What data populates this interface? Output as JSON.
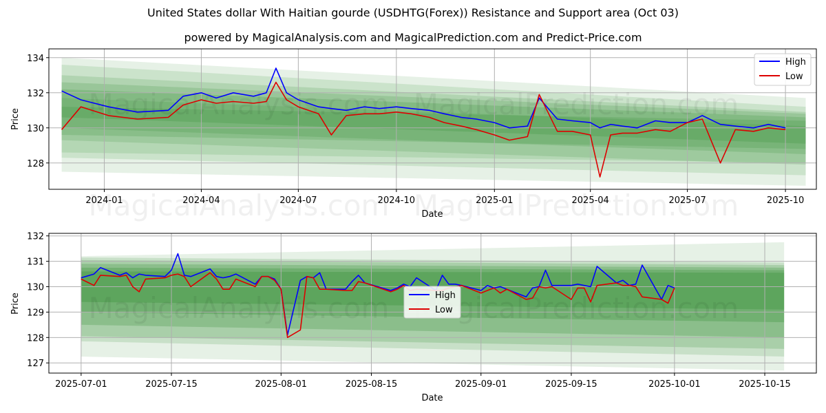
{
  "title": "United States dollar With Haitian gourde (USDHTG(Forex)) Resistance and Support area (Oct 03)",
  "subtitle": "powered by MagicalAnalysis.com and MagicalPrediction.com and Predict-Price.com",
  "watermarks": {
    "top_a": "MagicalAnalysis.com",
    "top_b": "MagicalPrediction.com",
    "bottom_a": "MagicalAnalysis.com",
    "bottom_b": "MagicalPrediction.com",
    "mid_a": "MagicalAnalysis.com",
    "mid_b": "MagicalPrediction.com"
  },
  "colors": {
    "high": "#0000ff",
    "low": "#dd0000",
    "band": "#2e8b2e",
    "grid": "#b0b0b0"
  },
  "chart_data": [
    {
      "type": "line",
      "xlabel": "Date",
      "ylabel": "Price",
      "xlim": [
        "2023-11-10",
        "2025-10-30"
      ],
      "ylim": [
        126.5,
        134.5
      ],
      "x_ticks": [
        "2024-01",
        "2024-04",
        "2024-07",
        "2024-10",
        "2025-01",
        "2025-04",
        "2025-07",
        "2025-10"
      ],
      "y_ticks": [
        128,
        130,
        132,
        134
      ],
      "grid": true,
      "legend_position": "top-right",
      "series": [
        {
          "name": "High",
          "color": "#0000ff",
          "x": [
            "2023-11-22",
            "2023-12-10",
            "2024-01-05",
            "2024-02-01",
            "2024-03-01",
            "2024-03-15",
            "2024-04-01",
            "2024-04-15",
            "2024-05-01",
            "2024-05-20",
            "2024-06-01",
            "2024-06-10",
            "2024-06-20",
            "2024-07-01",
            "2024-07-20",
            "2024-08-01",
            "2024-08-15",
            "2024-09-01",
            "2024-09-15",
            "2024-10-01",
            "2024-10-15",
            "2024-11-01",
            "2024-11-15",
            "2024-12-01",
            "2024-12-15",
            "2025-01-01",
            "2025-01-15",
            "2025-02-01",
            "2025-02-12",
            "2025-03-01",
            "2025-03-15",
            "2025-04-01",
            "2025-04-10",
            "2025-04-20",
            "2025-05-01",
            "2025-05-15",
            "2025-06-01",
            "2025-06-15",
            "2025-07-01",
            "2025-07-15",
            "2025-08-01",
            "2025-08-15",
            "2025-09-01",
            "2025-09-15",
            "2025-10-01"
          ],
          "y": [
            132.1,
            131.6,
            131.2,
            130.9,
            131.0,
            131.8,
            132.0,
            131.7,
            132.0,
            131.8,
            132.0,
            133.4,
            132.0,
            131.6,
            131.2,
            131.1,
            131.0,
            131.2,
            131.1,
            131.2,
            131.1,
            131.0,
            130.8,
            130.6,
            130.5,
            130.3,
            130.0,
            130.1,
            131.7,
            130.5,
            130.4,
            130.3,
            130.0,
            130.2,
            130.1,
            130.0,
            130.4,
            130.3,
            130.3,
            130.7,
            130.2,
            130.1,
            130.0,
            130.2,
            130.0
          ]
        },
        {
          "name": "Low",
          "color": "#dd0000",
          "x": [
            "2023-11-22",
            "2023-12-10",
            "2024-01-05",
            "2024-02-01",
            "2024-03-01",
            "2024-03-15",
            "2024-04-01",
            "2024-04-15",
            "2024-05-01",
            "2024-05-20",
            "2024-06-01",
            "2024-06-10",
            "2024-06-20",
            "2024-07-01",
            "2024-07-20",
            "2024-08-01",
            "2024-08-15",
            "2024-09-01",
            "2024-09-15",
            "2024-10-01",
            "2024-10-15",
            "2024-11-01",
            "2024-11-15",
            "2024-12-01",
            "2024-12-15",
            "2025-01-01",
            "2025-01-15",
            "2025-02-01",
            "2025-02-12",
            "2025-03-01",
            "2025-03-15",
            "2025-04-01",
            "2025-04-10",
            "2025-04-20",
            "2025-05-01",
            "2025-05-15",
            "2025-06-01",
            "2025-06-15",
            "2025-07-01",
            "2025-07-15",
            "2025-08-01",
            "2025-08-15",
            "2025-09-01",
            "2025-09-15",
            "2025-10-01"
          ],
          "y": [
            129.9,
            131.2,
            130.7,
            130.5,
            130.6,
            131.3,
            131.6,
            131.4,
            131.5,
            131.4,
            131.5,
            132.6,
            131.6,
            131.2,
            130.8,
            129.6,
            130.7,
            130.8,
            130.8,
            130.9,
            130.8,
            130.6,
            130.3,
            130.1,
            129.9,
            129.6,
            129.3,
            129.5,
            131.9,
            129.8,
            129.8,
            129.6,
            127.2,
            129.6,
            129.7,
            129.7,
            129.9,
            129.8,
            130.3,
            130.5,
            128.0,
            129.9,
            129.8,
            130.0,
            129.9
          ]
        }
      ]
    },
    {
      "type": "line",
      "xlabel": "Date",
      "ylabel": "Price",
      "xlim": [
        "2025-06-26",
        "2025-10-23"
      ],
      "ylim": [
        126.6,
        132.1
      ],
      "x_ticks": [
        "2025-07-01",
        "2025-07-15",
        "2025-08-01",
        "2025-08-15",
        "2025-09-01",
        "2025-09-15",
        "2025-10-01",
        "2025-10-15"
      ],
      "y_ticks": [
        127,
        128,
        129,
        130,
        131,
        132
      ],
      "grid": true,
      "legend_position": "center",
      "series": [
        {
          "name": "High",
          "color": "#0000ff",
          "x": [
            "2025-07-01",
            "2025-07-03",
            "2025-07-04",
            "2025-07-07",
            "2025-07-08",
            "2025-07-09",
            "2025-07-10",
            "2025-07-11",
            "2025-07-14",
            "2025-07-15",
            "2025-07-16",
            "2025-07-17",
            "2025-07-18",
            "2025-07-21",
            "2025-07-22",
            "2025-07-23",
            "2025-07-24",
            "2025-07-25",
            "2025-07-28",
            "2025-07-29",
            "2025-07-30",
            "2025-07-31",
            "2025-08-01",
            "2025-08-02",
            "2025-08-04",
            "2025-08-05",
            "2025-08-06",
            "2025-08-07",
            "2025-08-08",
            "2025-08-11",
            "2025-08-12",
            "2025-08-13",
            "2025-08-14",
            "2025-08-18",
            "2025-08-19",
            "2025-08-20",
            "2025-08-21",
            "2025-08-22",
            "2025-08-25",
            "2025-08-26",
            "2025-08-27",
            "2025-08-28",
            "2025-08-29",
            "2025-09-01",
            "2025-09-02",
            "2025-09-03",
            "2025-09-04",
            "2025-09-05",
            "2025-09-08",
            "2025-09-09",
            "2025-09-10",
            "2025-09-11",
            "2025-09-12",
            "2025-09-15",
            "2025-09-16",
            "2025-09-17",
            "2025-09-18",
            "2025-09-19",
            "2025-09-22",
            "2025-09-23",
            "2025-09-24",
            "2025-09-25",
            "2025-09-26",
            "2025-09-29",
            "2025-09-30",
            "2025-10-01"
          ],
          "y": [
            130.35,
            130.5,
            130.75,
            130.45,
            130.55,
            130.35,
            130.5,
            130.45,
            130.4,
            130.65,
            131.3,
            130.45,
            130.4,
            130.7,
            130.4,
            130.35,
            130.4,
            130.5,
            130.1,
            130.4,
            130.4,
            130.3,
            129.9,
            128.1,
            130.25,
            130.4,
            130.35,
            130.55,
            129.9,
            129.9,
            130.2,
            130.45,
            130.15,
            129.85,
            129.95,
            130.1,
            130.0,
            130.35,
            129.85,
            130.45,
            130.1,
            130.1,
            130.05,
            129.85,
            130.05,
            129.95,
            130.0,
            129.9,
            129.6,
            129.95,
            130.0,
            130.65,
            130.05,
            130.05,
            130.1,
            130.05,
            130.0,
            130.8,
            130.15,
            130.25,
            130.05,
            130.1,
            130.85,
            129.5,
            130.05,
            129.95
          ]
        },
        {
          "name": "Low",
          "color": "#dd0000",
          "x": [
            "2025-07-01",
            "2025-07-03",
            "2025-07-04",
            "2025-07-07",
            "2025-07-08",
            "2025-07-09",
            "2025-07-10",
            "2025-07-11",
            "2025-07-14",
            "2025-07-15",
            "2025-07-16",
            "2025-07-17",
            "2025-07-18",
            "2025-07-21",
            "2025-07-22",
            "2025-07-23",
            "2025-07-24",
            "2025-07-25",
            "2025-07-28",
            "2025-07-29",
            "2025-07-30",
            "2025-07-31",
            "2025-08-01",
            "2025-08-02",
            "2025-08-04",
            "2025-08-05",
            "2025-08-06",
            "2025-08-07",
            "2025-08-08",
            "2025-08-11",
            "2025-08-12",
            "2025-08-13",
            "2025-08-14",
            "2025-08-18",
            "2025-08-19",
            "2025-08-20",
            "2025-08-21",
            "2025-08-22",
            "2025-08-25",
            "2025-08-26",
            "2025-08-27",
            "2025-08-28",
            "2025-08-29",
            "2025-09-01",
            "2025-09-02",
            "2025-09-03",
            "2025-09-04",
            "2025-09-05",
            "2025-09-08",
            "2025-09-09",
            "2025-09-10",
            "2025-09-11",
            "2025-09-12",
            "2025-09-15",
            "2025-09-16",
            "2025-09-17",
            "2025-09-18",
            "2025-09-19",
            "2025-09-22",
            "2025-09-23",
            "2025-09-24",
            "2025-09-25",
            "2025-09-26",
            "2025-09-29",
            "2025-09-30",
            "2025-10-01"
          ],
          "y": [
            130.3,
            130.05,
            130.45,
            130.4,
            130.45,
            130.0,
            129.8,
            130.3,
            130.35,
            130.45,
            130.5,
            130.4,
            130.0,
            130.55,
            130.3,
            129.9,
            129.9,
            130.3,
            130.0,
            130.4,
            130.4,
            130.25,
            129.9,
            128.0,
            128.3,
            130.4,
            130.35,
            129.9,
            129.9,
            129.85,
            129.85,
            130.2,
            130.15,
            129.8,
            129.9,
            130.05,
            129.85,
            129.9,
            129.85,
            129.85,
            129.95,
            130.0,
            130.05,
            129.75,
            129.85,
            129.95,
            129.75,
            129.9,
            129.5,
            129.55,
            130.0,
            129.95,
            130.0,
            129.5,
            129.95,
            129.95,
            129.4,
            130.05,
            130.15,
            130.05,
            130.05,
            130.0,
            129.6,
            129.5,
            129.35,
            129.95
          ]
        }
      ]
    }
  ]
}
